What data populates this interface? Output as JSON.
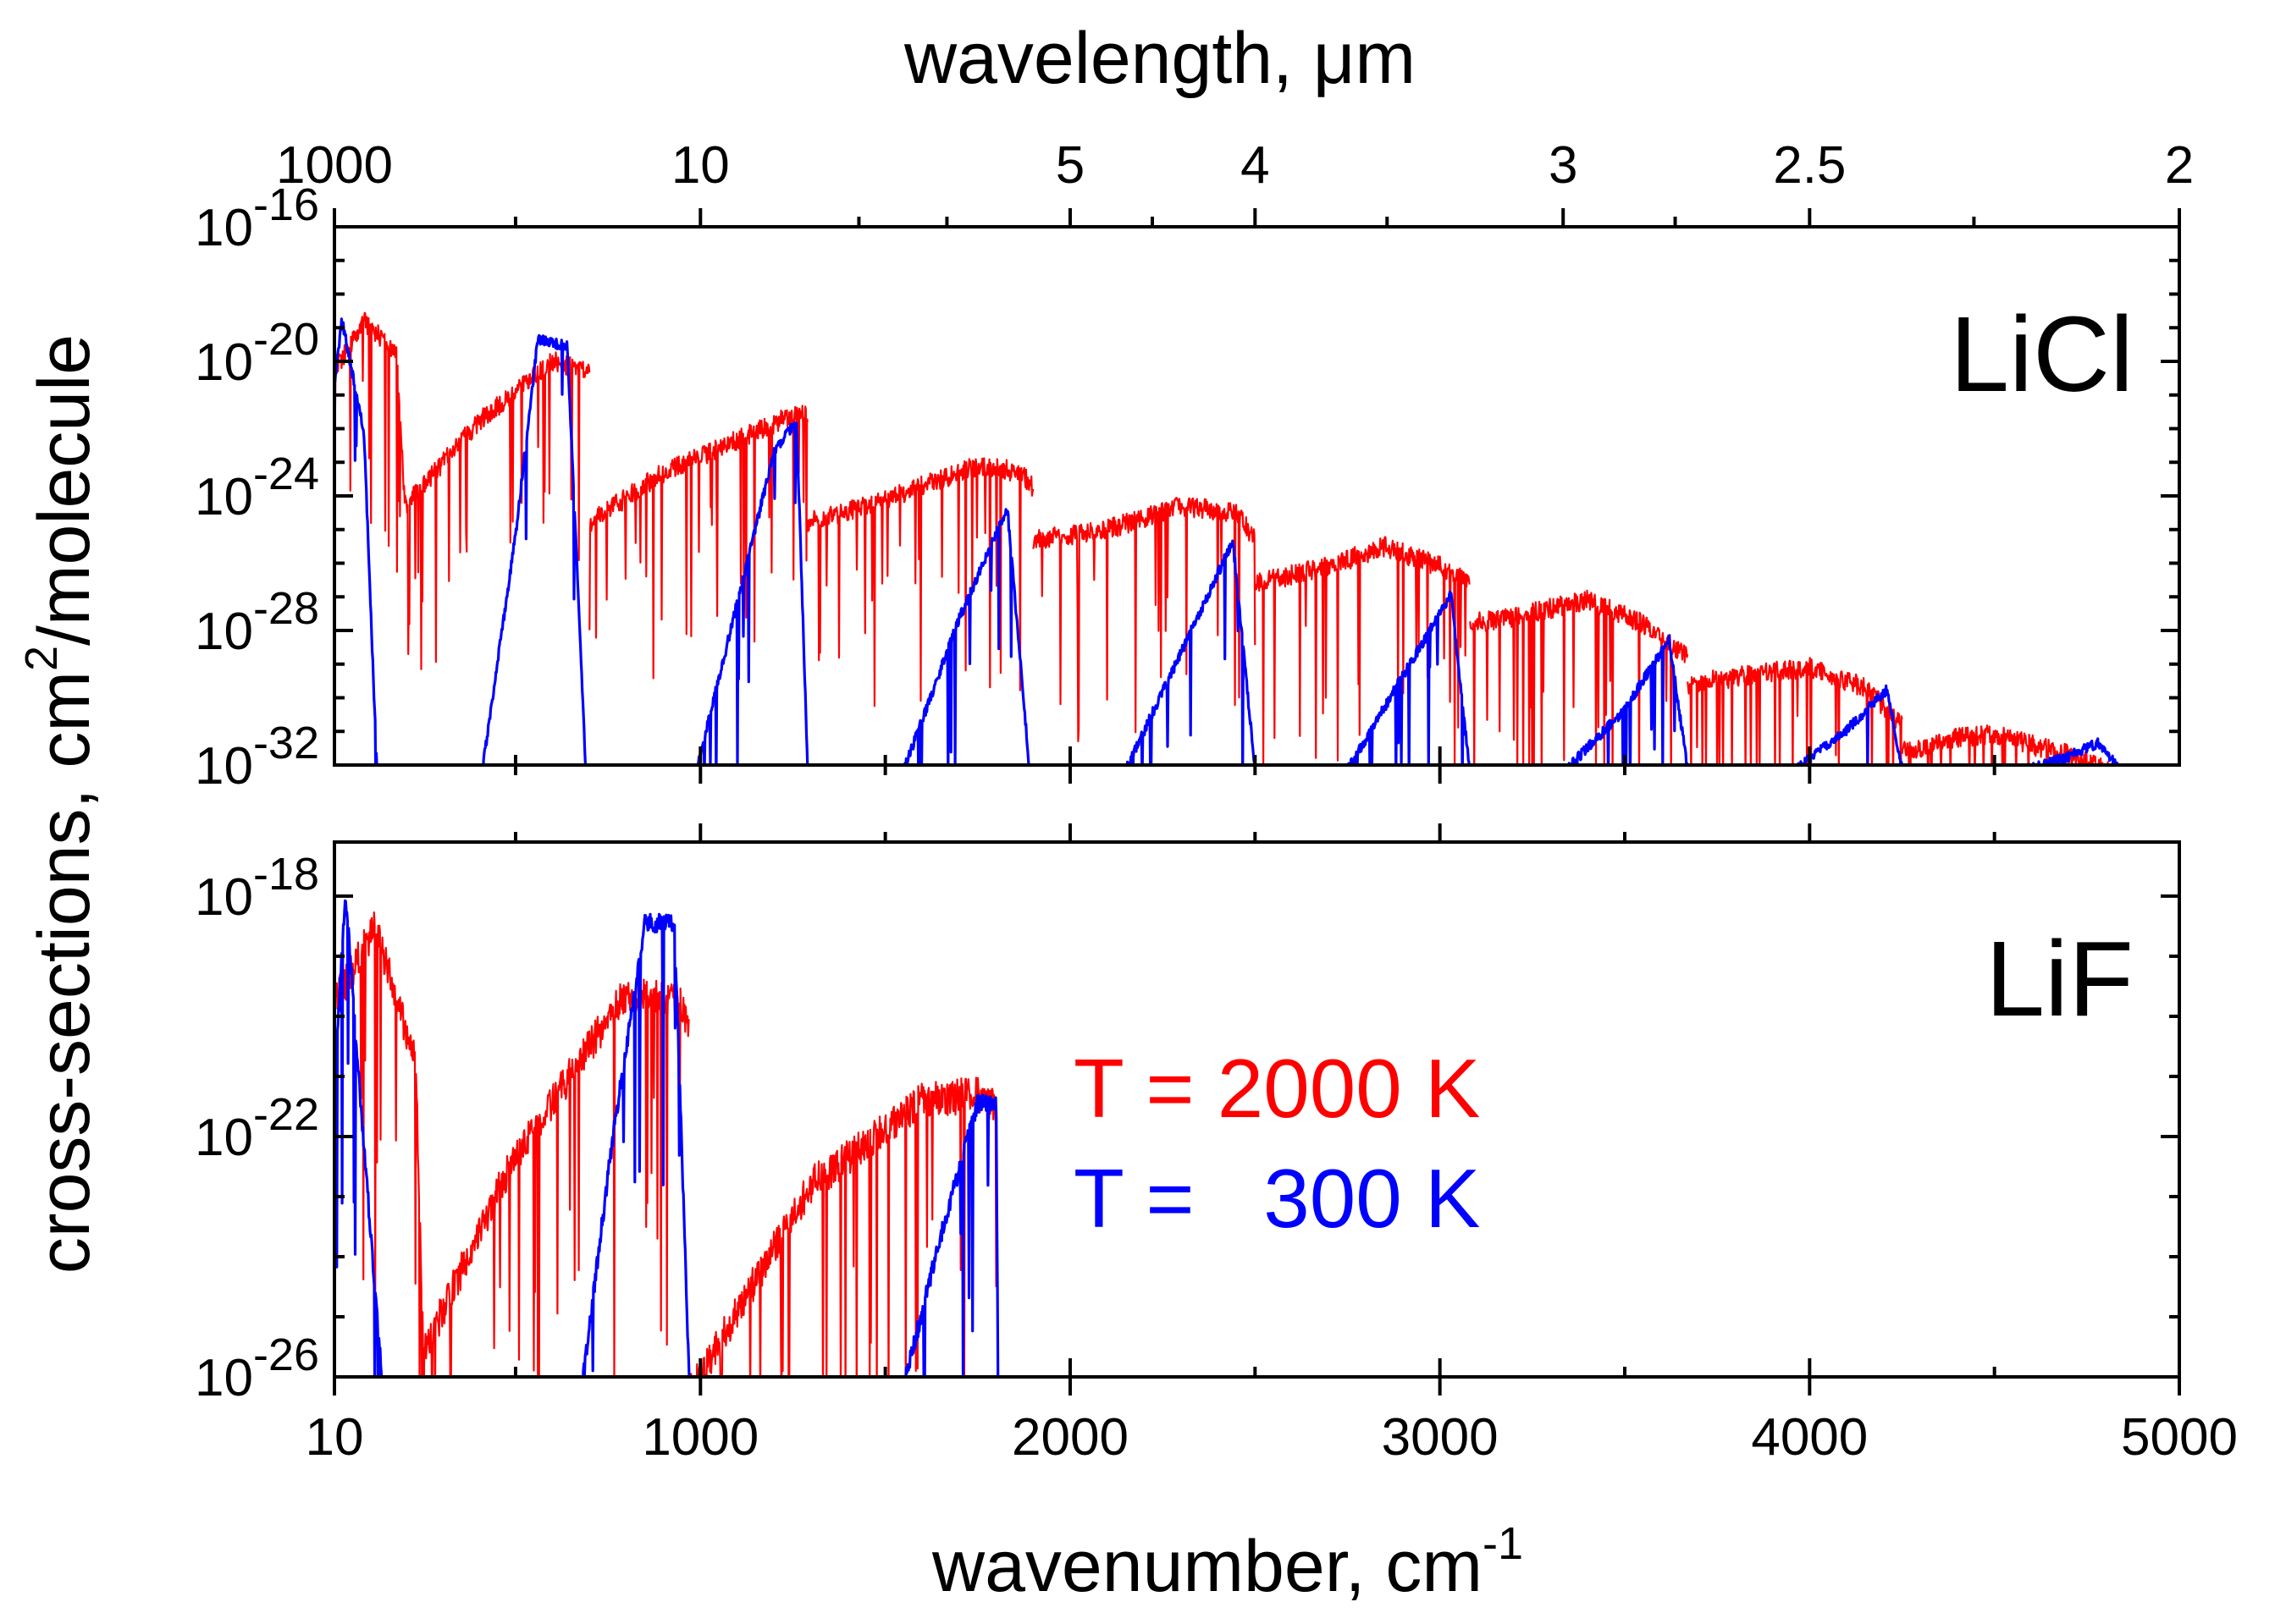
{
  "chart_data": [
    {
      "type": "line",
      "panel": "top",
      "label": "LiCl",
      "x_scale": "linear",
      "y_scale": "log",
      "xlim": [
        10,
        5000
      ],
      "ylim_exp": [
        -32,
        -16
      ],
      "y_ticks_exp": [
        -16,
        -20,
        -24,
        -28,
        -32
      ],
      "x_ticks": [
        1000,
        2000,
        3000,
        4000,
        5000
      ],
      "top_axis": {
        "title": "wavelength, μm",
        "tick_labels": [
          "1000",
          "10",
          "5",
          "4",
          "3",
          "2.5",
          "2"
        ],
        "tick_values_um": [
          1000,
          10,
          5,
          4,
          3,
          2.5,
          2
        ]
      },
      "y_title_base": "cross-sections, cm",
      "y_title_sup": "2",
      "y_title_rest": "/molecule",
      "series": [
        {
          "name": "T = 2000 K",
          "color": "#ff0000",
          "bands": [
            {
              "x": [
                10,
                90,
                180,
                200
              ],
              "y_exp": [
                -20,
                -18.5,
                -19.5,
                -24
              ]
            },
            {
              "x": [
                200,
                400,
                600,
                700
              ],
              "y_exp": [
                -24,
                -21.5,
                -19.7,
                -20
              ]
            },
            {
              "x": [
                700,
                900,
                1150,
                1250,
                1290
              ],
              "y_exp": [
                -24.5,
                -23,
                -21.8,
                -21.3,
                -21.3
              ]
            },
            {
              "x": [
                1290,
                1500,
                1750,
                1870,
                1900
              ],
              "y_exp": [
                -24.5,
                -23.8,
                -22.8,
                -23,
                -23.5
              ]
            },
            {
              "x": [
                1900,
                2100,
                2300,
                2450,
                2500
              ],
              "y_exp": [
                -25,
                -24.7,
                -24,
                -24.2,
                -25
              ]
            },
            {
              "x": [
                2500,
                2700,
                2850,
                3000,
                3080
              ],
              "y_exp": [
                -26.3,
                -25.8,
                -25.2,
                -25.8,
                -26.3
              ]
            },
            {
              "x": [
                3080,
                3200,
                3400,
                3550,
                3670
              ],
              "y_exp": [
                -27.5,
                -27.3,
                -26.8,
                -27.5,
                -28.5
              ]
            },
            {
              "x": [
                3670,
                3850,
                4000,
                4150,
                4250
              ],
              "y_exp": [
                -29.3,
                -29.0,
                -28.8,
                -29.4,
                -30.5
              ]
            },
            {
              "x": [
                4250,
                4400,
                4500,
                4700,
                4840
              ],
              "y_exp": [
                -31.3,
                -30.9,
                -30.8,
                -31.4,
                -32
              ]
            }
          ]
        },
        {
          "name": "T = 300 K",
          "color": "#0000ff",
          "bands": [
            {
              "x": [
                10,
                30,
                90,
                125
              ],
              "y_exp": [
                -20.5,
                -18.6,
                -22,
                -32
              ]
            },
            {
              "x": [
                410,
                500,
                560,
                640,
                690
              ],
              "y_exp": [
                -32,
                -25,
                -19.2,
                -19.4,
                -32
              ]
            },
            {
              "x": [
                990,
                1100,
                1200,
                1260,
                1290
              ],
              "y_exp": [
                -32,
                -27,
                -22.5,
                -21.6,
                -32
              ]
            },
            {
              "x": [
                1550,
                1700,
                1830,
                1890
              ],
              "y_exp": [
                -32,
                -27.5,
                -24.2,
                -32
              ]
            },
            {
              "x": [
                2150,
                2300,
                2440,
                2500
              ],
              "y_exp": [
                -32,
                -28.5,
                -25.2,
                -32
              ]
            },
            {
              "x": [
                2750,
                2900,
                3030,
                3080
              ],
              "y_exp": [
                -32,
                -29.2,
                -26.8,
                -32
              ]
            },
            {
              "x": [
                3340,
                3500,
                3620,
                3670
              ],
              "y_exp": [
                -32,
                -30.2,
                -28.1,
                -32
              ]
            },
            {
              "x": [
                3960,
                4100,
                4210,
                4250
              ],
              "y_exp": [
                -32,
                -30.8,
                -29.6,
                -32
              ]
            },
            {
              "x": [
                4580,
                4700,
                4780,
                4840
              ],
              "y_exp": [
                -32,
                -31.6,
                -31.2,
                -32
              ]
            }
          ]
        }
      ]
    },
    {
      "type": "line",
      "panel": "bottom",
      "label": "LiF",
      "x_scale": "linear",
      "y_scale": "log",
      "xlim": [
        10,
        5000
      ],
      "ylim_exp": [
        -26,
        -17.1
      ],
      "y_ticks_exp": [
        -18,
        -22,
        -26
      ],
      "x_ticks": [
        10,
        1000,
        2000,
        3000,
        4000,
        5000
      ],
      "x_tick_labels": [
        "10",
        "1000",
        "2000",
        "3000",
        "4000",
        "5000"
      ],
      "x_title_base": "wavenumber, cm",
      "x_title_sup": "-1",
      "series": [
        {
          "name": "T = 2000 K",
          "color": "#ff0000",
          "bands": [
            {
              "x": [
                10,
                120,
                230,
                250
              ],
              "y_exp": [
                -19.5,
                -18.2,
                -20.5,
                -25.3
              ]
            },
            {
              "x": [
                250,
                500,
                800,
                950,
                970
              ],
              "y_exp": [
                -25.3,
                -22,
                -19.3,
                -19.5,
                -20
              ]
            },
            {
              "x": [
                970,
                1300,
                1600,
                1750,
                1800
              ],
              "y_exp": [
                -26,
                -22.5,
                -21.1,
                -21.0,
                -21.2
              ]
            }
          ]
        },
        {
          "name": "T = 300 K",
          "color": "#0000ff",
          "bands": [
            {
              "x": [
                10,
                40,
                90,
                140
              ],
              "y_exp": [
                -21,
                -17.8,
                -22,
                -26
              ]
            },
            {
              "x": [
                680,
                760,
                850,
                930,
                970
              ],
              "y_exp": [
                -26,
                -22,
                -18.3,
                -18.3,
                -26
              ]
            },
            {
              "x": [
                1550,
                1650,
                1750,
                1800,
                1805
              ],
              "y_exp": [
                -26,
                -23.5,
                -21.3,
                -21.3,
                -26
              ]
            }
          ]
        }
      ]
    }
  ],
  "legend": {
    "red_text": "T = 2000 K",
    "blue_text": "T =   300 K",
    "red_color": "#ff0000",
    "blue_color": "#0000ff"
  }
}
